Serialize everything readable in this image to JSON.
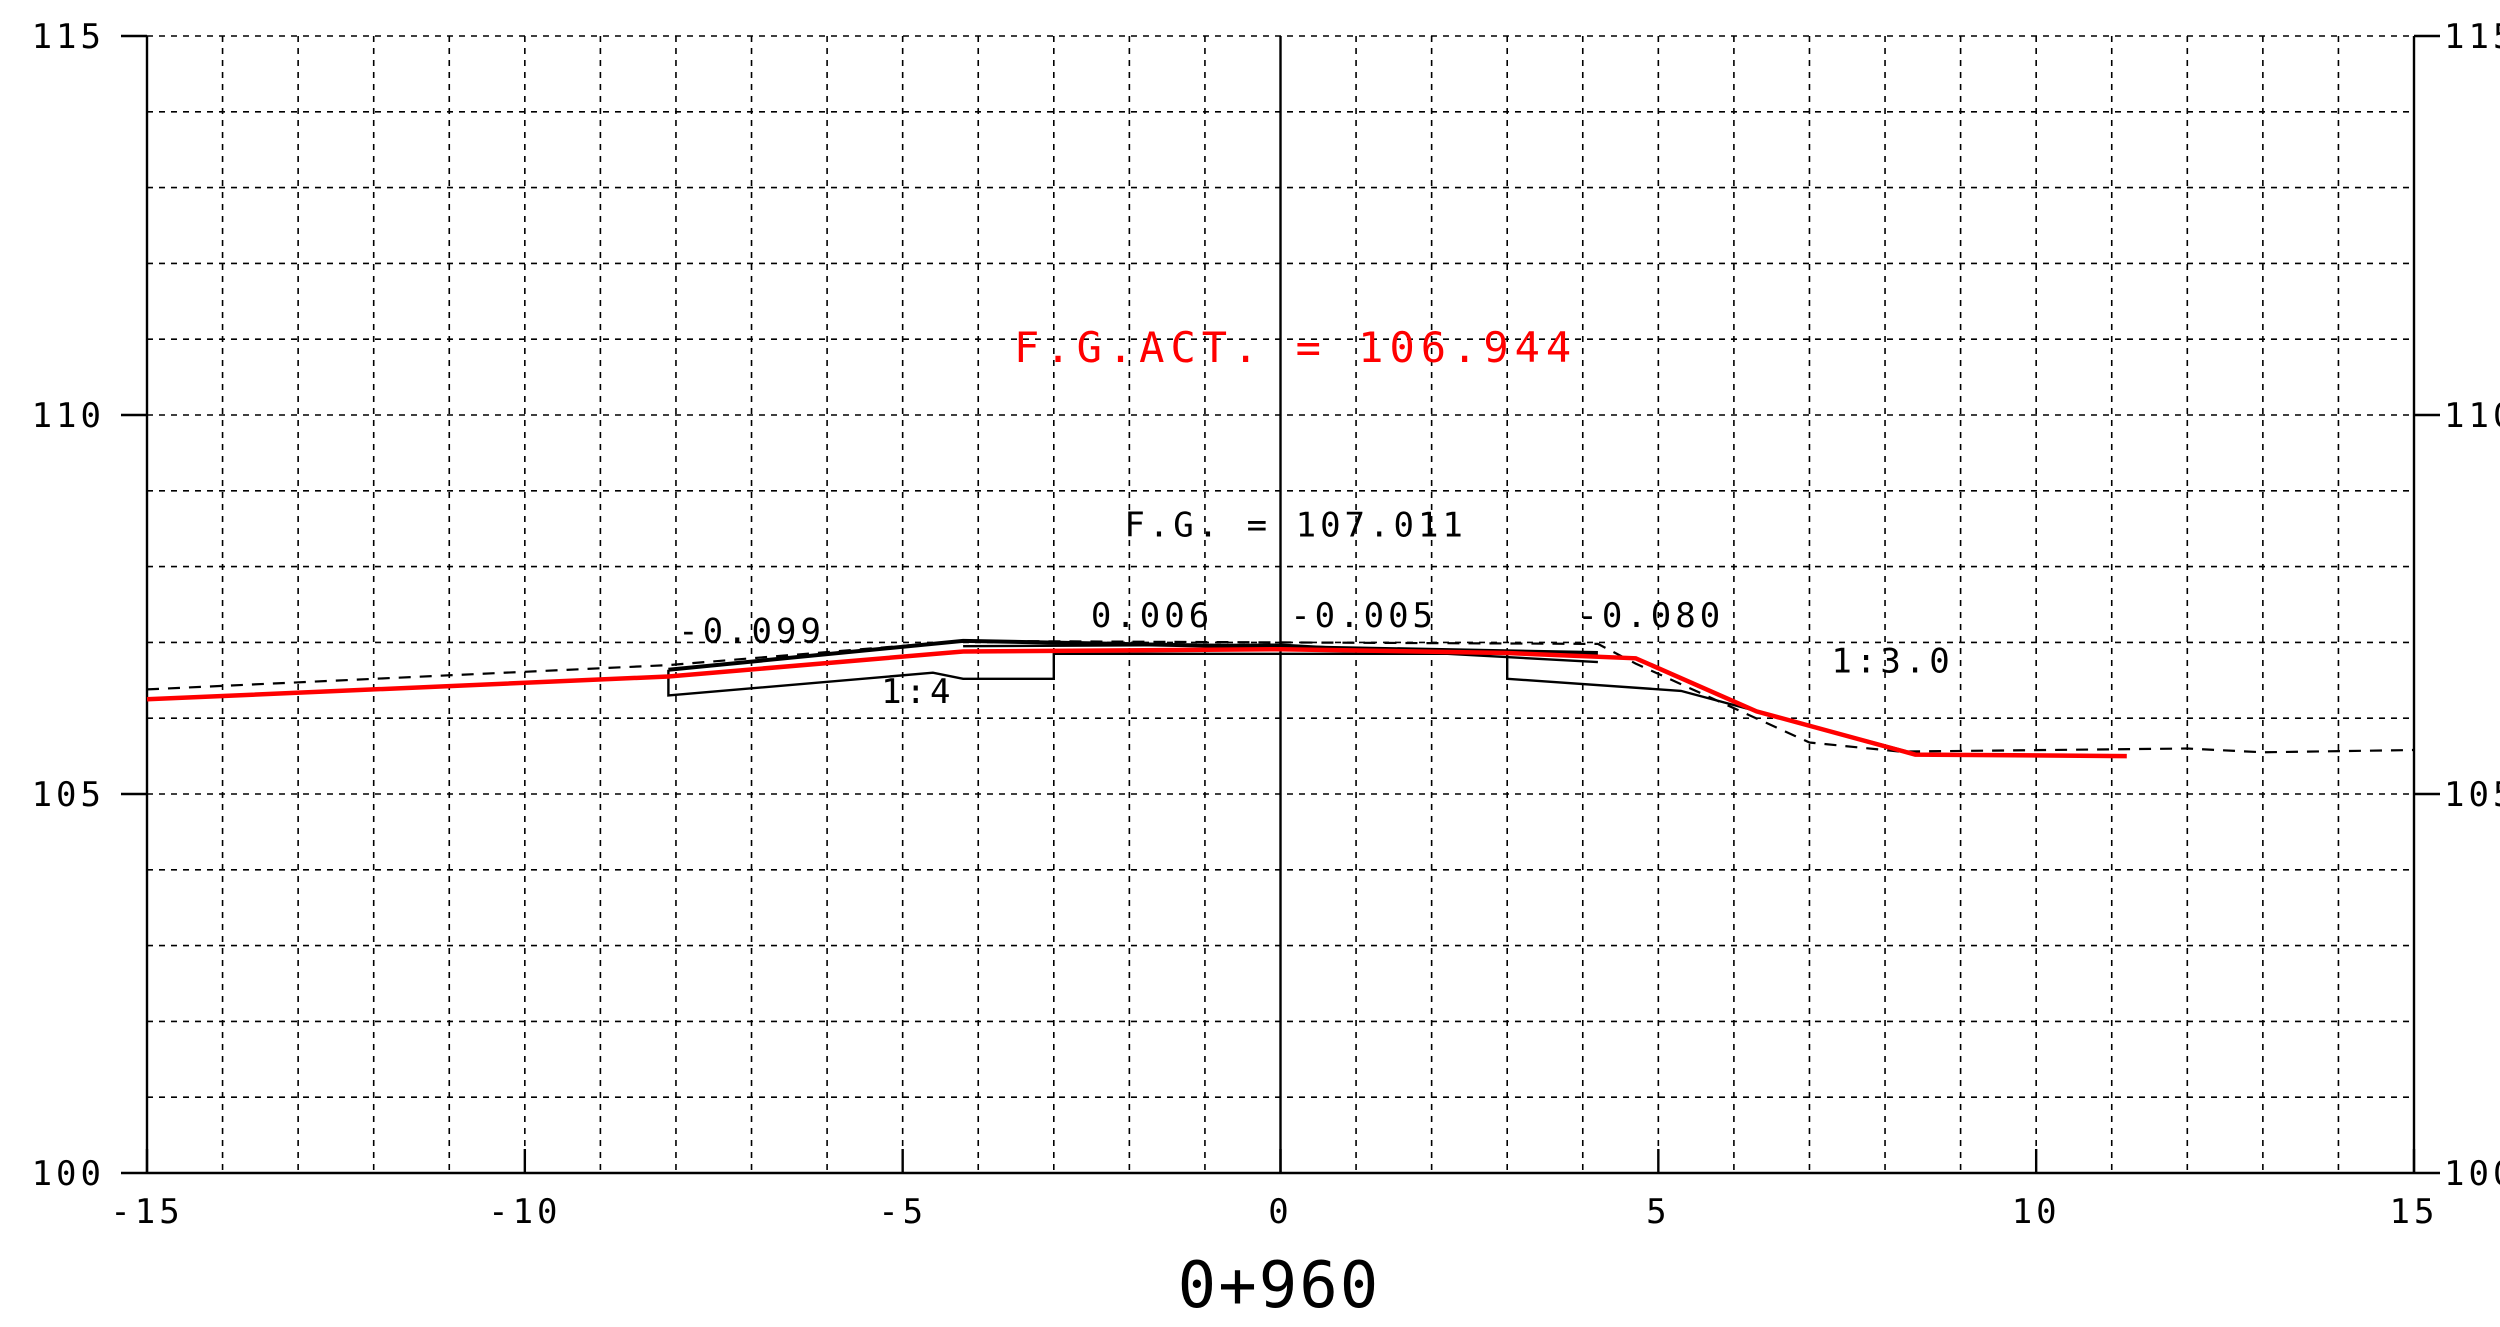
{
  "chart_data": {
    "type": "line",
    "title": "0+960",
    "xlim": [
      -15,
      15
    ],
    "ylim": [
      100,
      115
    ],
    "x_ticks": [
      -15,
      -10,
      -5,
      0,
      5,
      10,
      15
    ],
    "x_tick_labels": [
      "-15",
      "-10",
      "-5",
      "0",
      "5",
      "10",
      "15"
    ],
    "y_ticks": [
      100,
      105,
      110,
      115
    ],
    "y_tick_labels": [
      "100",
      "105",
      "110",
      "115"
    ],
    "grid": true,
    "grid_x_step": 1,
    "grid_y_step": 1,
    "colors": {
      "actual": "#ff0000",
      "design": "#000000",
      "existing": "#000000",
      "grid": "#000000"
    },
    "annotations": {
      "fg_actual": {
        "text": "F.G.ACT. = 106.944",
        "x": 0.2,
        "y": 110.7
      },
      "fg": {
        "text": "F.G. = 107.011",
        "x": 0.2,
        "y": 108.4
      },
      "slope_left_outer": {
        "text": "-0.099",
        "x": -7.0,
        "y": 107.0
      },
      "slope_left_inner": {
        "text": "0.006",
        "x": -1.7,
        "y": 107.2
      },
      "slope_right_inner": {
        "text": "-0.005",
        "x": 1.1,
        "y": 107.2
      },
      "slope_right_outer": {
        "text": "-0.080",
        "x": 4.9,
        "y": 107.2
      },
      "side_slope_left": {
        "text": "1:4",
        "x": -4.8,
        "y": 106.2
      },
      "side_slope_right": {
        "text": "1:3.0",
        "x": 8.1,
        "y": 106.6
      }
    },
    "series": [
      {
        "key": "existing",
        "style": "dashed",
        "x": [
          -15,
          -8.1,
          -4.2,
          4.2,
          4.7,
          7.0,
          8.2,
          12.0,
          13.0,
          15.0
        ],
        "y": [
          106.38,
          106.7,
          107.02,
          106.98,
          106.72,
          105.68,
          105.56,
          105.6,
          105.55,
          105.58
        ]
      },
      {
        "key": "design_top",
        "style": "solid",
        "x": [
          -8.1,
          -4.2,
          4.2
        ],
        "y": [
          106.64,
          107.02,
          106.86
        ]
      },
      {
        "key": "design_outline",
        "style": "solid",
        "x": [
          -8.1,
          -8.1,
          -4.6,
          -4.2,
          -3.0,
          -3.0,
          3.0,
          3.0,
          5.3,
          8.3
        ],
        "y": [
          106.64,
          106.3,
          106.6,
          106.52,
          106.52,
          106.85,
          106.85,
          106.52,
          106.36,
          105.56
        ]
      },
      {
        "key": "design_road",
        "style": "solid",
        "x": [
          -4.2,
          0,
          4.2
        ],
        "y": [
          106.95,
          106.97,
          106.74
        ]
      },
      {
        "key": "actual",
        "style": "solid",
        "x": [
          -15,
          -8.1,
          -4.2,
          0,
          3.0,
          4.7,
          6.3,
          8.4,
          11.2
        ],
        "y": [
          106.25,
          106.55,
          106.88,
          106.91,
          106.86,
          106.79,
          106.09,
          105.52,
          105.5
        ]
      }
    ]
  }
}
